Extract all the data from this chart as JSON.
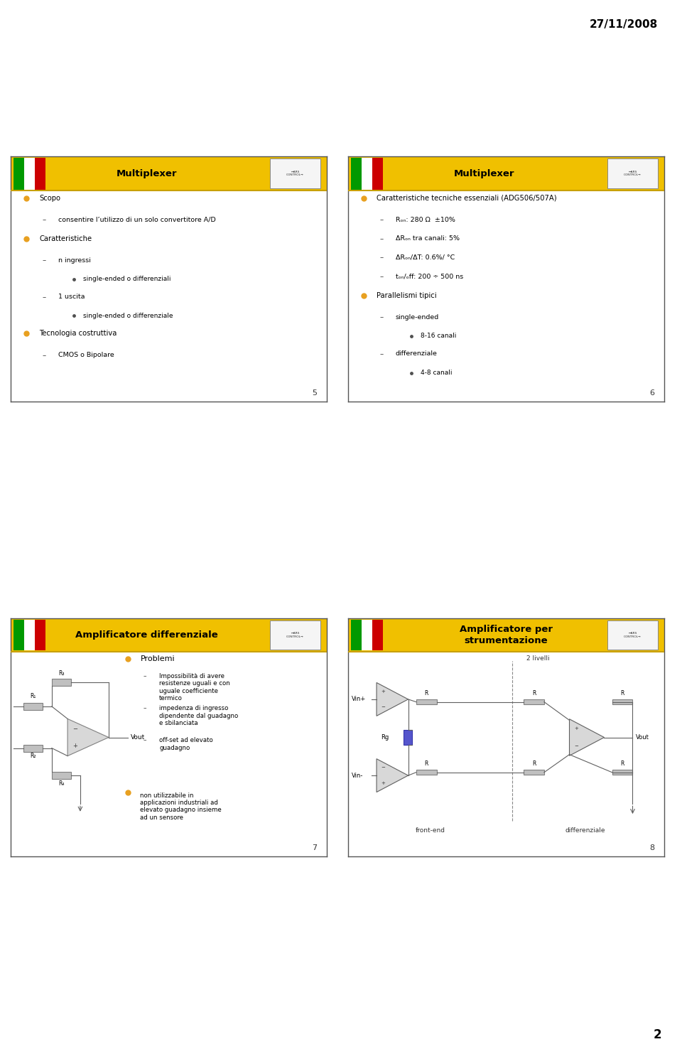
{
  "date_text": "27/11/2008",
  "page_number": "2",
  "bg_color": "#ffffff",
  "slide1": {
    "title": "Multiplexer",
    "slide_num": "5",
    "content": [
      {
        "level": 0,
        "text": "Scopo"
      },
      {
        "level": 1,
        "text": "consentire l’utilizzo di un solo convertitore A/D"
      },
      {
        "level": 0,
        "text": "Caratteristiche"
      },
      {
        "level": 1,
        "text": "n ingressi"
      },
      {
        "level": 2,
        "text": "single-ended o differenziali"
      },
      {
        "level": 1,
        "text": "1 uscita"
      },
      {
        "level": 2,
        "text": "single-ended o differenziale"
      },
      {
        "level": 0,
        "text": "Tecnologia costruttiva"
      },
      {
        "level": 1,
        "text": "CMOS o Bipolare"
      }
    ]
  },
  "slide2": {
    "title": "Multiplexer",
    "slide_num": "6",
    "content": [
      {
        "level": 0,
        "text": "Caratteristiche tecniche essenziali (ADG506/507A)"
      },
      {
        "level": 1,
        "text": "Rₒₙ: 280 Ω  ±10%"
      },
      {
        "level": 1,
        "text": "ΔRₒₙ tra canali: 5%"
      },
      {
        "level": 1,
        "text": "ΔRₒₙ/ΔT: 0.6%/ °C"
      },
      {
        "level": 1,
        "text": "tₒₙ/ₒff: 200 ÷ 500 ns"
      },
      {
        "level": 0,
        "text": "Parallelismi tipici"
      },
      {
        "level": 1,
        "text": "single-ended"
      },
      {
        "level": 2,
        "text": "8-16 canali"
      },
      {
        "level": 1,
        "text": "differenziale"
      },
      {
        "level": 2,
        "text": "4-8 canali"
      }
    ]
  },
  "slide3": {
    "title": "Amplificatore differenziale",
    "slide_num": "7",
    "problems_title": "Problemi",
    "problems": [
      "Impossibilità di avere\nresistenze uguali e con\nuguale coefficiente\ntermico",
      "impedenza di ingresso\ndipendente dal guadagno\ne sbilanciata",
      "off-set ad elevato\nguadagno"
    ],
    "note": "non utilizzabile in\napplicazioni industriali ad\nelevato guadagno insieme\nad un sensore"
  },
  "slide4": {
    "title": "Amplificatore per\nstrumentazione",
    "slide_num": "8",
    "subtitle": "2 livelli",
    "labels": {
      "vin_plus": "Vin+",
      "vin_minus": "Vin-",
      "vout": "Vout",
      "rg": "Rg",
      "r": "R",
      "front_end": "front-end",
      "differenziale": "differenziale"
    }
  },
  "colors": {
    "orange_bullet": "#e8a020",
    "dark_gray": "#404040",
    "wire_color": "#606060",
    "header_yellow": "#f0c000",
    "header_yellow2": "#c8a000"
  }
}
